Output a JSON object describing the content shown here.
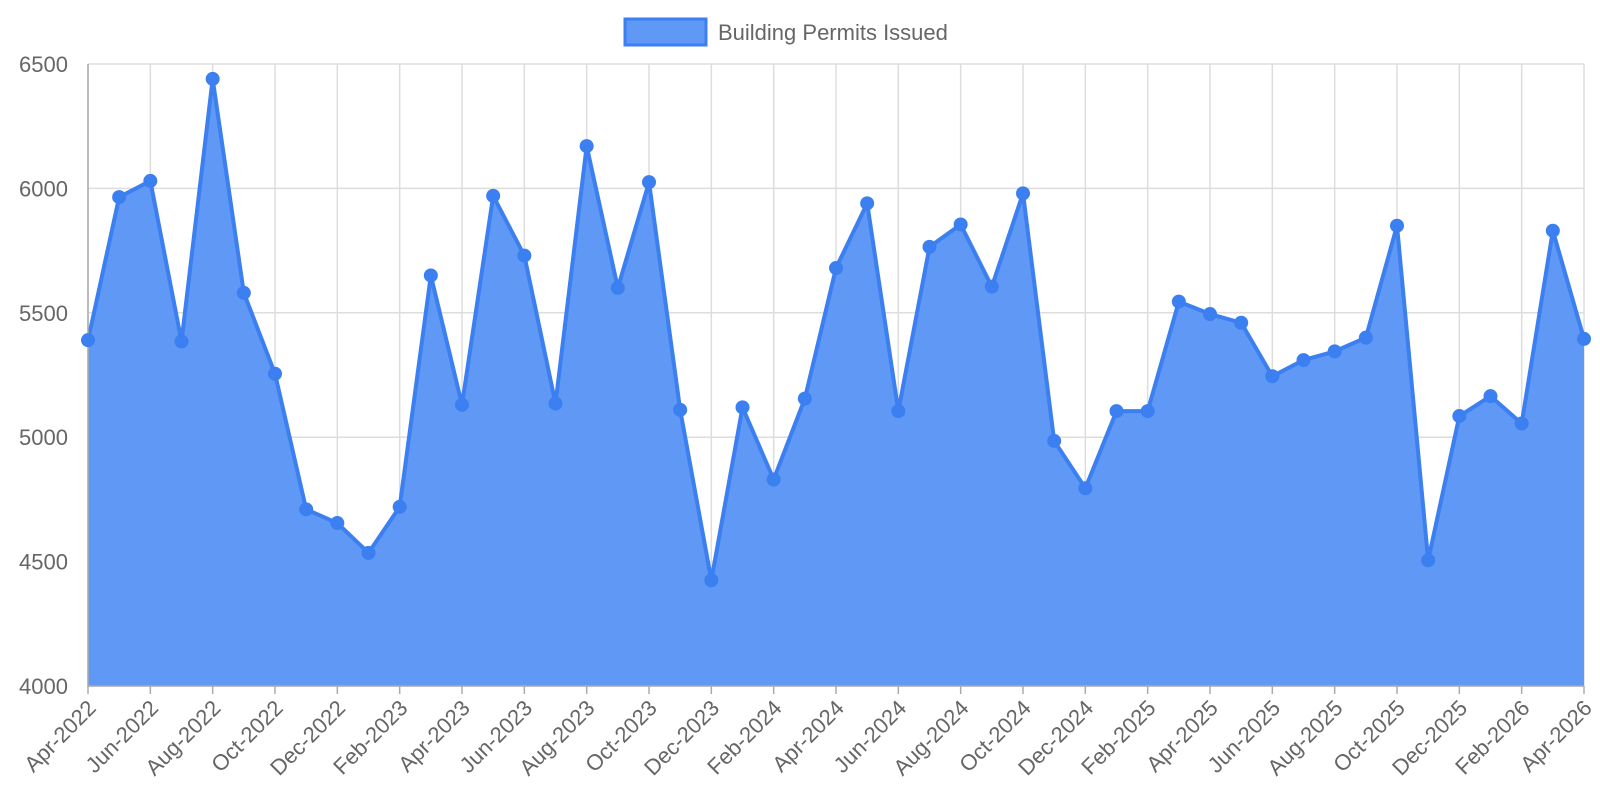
{
  "chart_data": {
    "type": "area",
    "legend": {
      "label": "Building Permits Issued",
      "position": "top"
    },
    "x": [
      "Apr-2022",
      "May-2022",
      "Jun-2022",
      "Jul-2022",
      "Aug-2022",
      "Sep-2022",
      "Oct-2022",
      "Nov-2022",
      "Dec-2022",
      "Jan-2023",
      "Feb-2023",
      "Mar-2023",
      "Apr-2023",
      "May-2023",
      "Jun-2023",
      "Jul-2023",
      "Aug-2023",
      "Sep-2023",
      "Oct-2023",
      "Nov-2023",
      "Dec-2023",
      "Jan-2024",
      "Feb-2024",
      "Mar-2024",
      "Apr-2024",
      "May-2024",
      "Jun-2024",
      "Jul-2024",
      "Aug-2024",
      "Sep-2024",
      "Oct-2024",
      "Nov-2024",
      "Dec-2024",
      "Jan-2025",
      "Feb-2025",
      "Mar-2025",
      "Apr-2025",
      "May-2025",
      "Jun-2025",
      "Jul-2025",
      "Aug-2025",
      "Sep-2025",
      "Oct-2025",
      "Nov-2025",
      "Dec-2025",
      "Jan-2026",
      "Feb-2026",
      "Mar-2026",
      "Apr-2026"
    ],
    "x_tick_labels": [
      "Apr-2022",
      "Jun-2022",
      "Aug-2022",
      "Oct-2022",
      "Dec-2022",
      "Feb-2023",
      "Apr-2023",
      "Jun-2023",
      "Aug-2023",
      "Oct-2023",
      "Dec-2023",
      "Feb-2024",
      "Apr-2024",
      "Jun-2024",
      "Aug-2024",
      "Oct-2024",
      "Dec-2024",
      "Feb-2025",
      "Apr-2025",
      "Jun-2025",
      "Aug-2025",
      "Oct-2025",
      "Dec-2025",
      "Feb-2026",
      "Apr-2026"
    ],
    "series": [
      {
        "name": "Building Permits Issued",
        "values": [
          5390,
          5965,
          6030,
          5385,
          6440,
          5580,
          5255,
          4710,
          4655,
          4535,
          4720,
          5650,
          5130,
          5970,
          5730,
          5135,
          6170,
          5600,
          6025,
          5110,
          4425,
          5120,
          4830,
          5155,
          5680,
          5940,
          5105,
          5765,
          5855,
          5605,
          5980,
          4985,
          4795,
          5105,
          5105,
          5545,
          5495,
          5460,
          5245,
          5310,
          5345,
          5400,
          5850,
          4505,
          5085,
          5165,
          5055,
          5830,
          5395
        ]
      }
    ],
    "y_ticks": [
      4000,
      4500,
      5000,
      5500,
      6000,
      6500
    ],
    "ylim": [
      4000,
      6500
    ],
    "grid": true,
    "colors": {
      "fill": "#5f99f5",
      "line": "#3b7ff0",
      "grid": "#dddddd",
      "text": "#666666"
    }
  }
}
